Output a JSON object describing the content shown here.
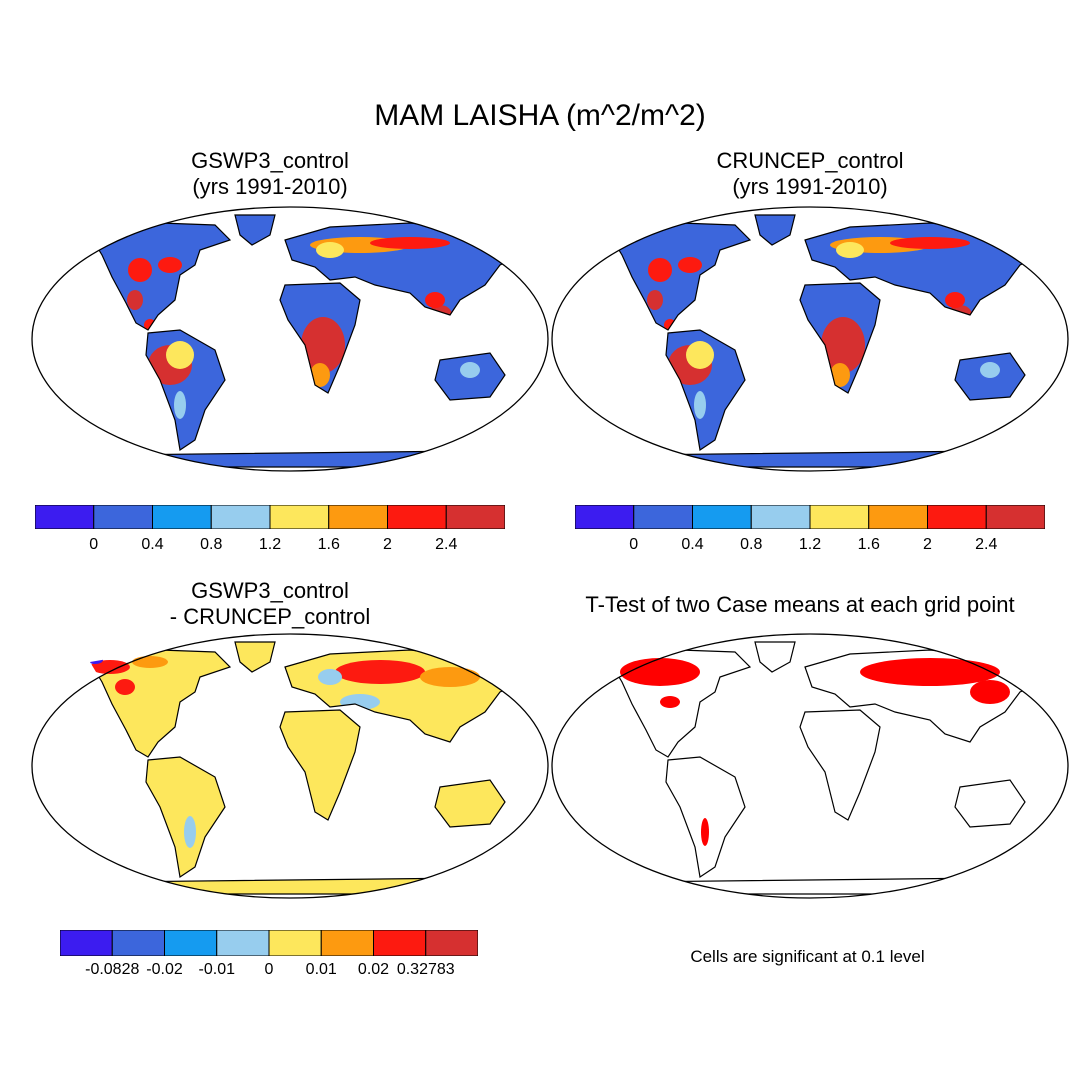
{
  "title": "MAM LAISHA (m^2/m^2)",
  "panels": [
    {
      "id": "gswp3",
      "title_line1": "GSWP3_control",
      "title_line2": "(yrs 1991-2010)",
      "land_color": "#3c66dc"
    },
    {
      "id": "cruncep",
      "title_line1": "CRUNCEP_control",
      "title_line2": "(yrs 1991-2010)",
      "land_color": "#3c66dc"
    },
    {
      "id": "diff",
      "title_line1": "GSWP3_control",
      "title_line2": "- CRUNCEP_control",
      "land_color": "#fde75c"
    },
    {
      "id": "ttest",
      "title_line1": "T-Test of two Case means at each grid point",
      "land_color": "#ffffff"
    }
  ],
  "colorbar_main": {
    "colors": [
      "#3c1cf0",
      "#3c66dc",
      "#159bf0",
      "#97cdee",
      "#fde75c",
      "#fd9a10",
      "#fd1a10",
      "#d63030"
    ],
    "labels": [
      "0",
      "0.4",
      "0.8",
      "1.2",
      "1.6",
      "2",
      "2.4"
    ]
  },
  "colorbar_diff": {
    "colors": [
      "#3c1cf0",
      "#3c66dc",
      "#159bf0",
      "#97cdee",
      "#fde75c",
      "#fd9a10",
      "#fd1a10",
      "#d63030"
    ],
    "labels": [
      "-0.0828",
      "-0.02",
      "-0.01",
      "0",
      "0.01",
      "0.02",
      "0.32783"
    ]
  },
  "significance_note": "Cells are significant at 0.1 level",
  "significance_color": "#ff0000"
}
